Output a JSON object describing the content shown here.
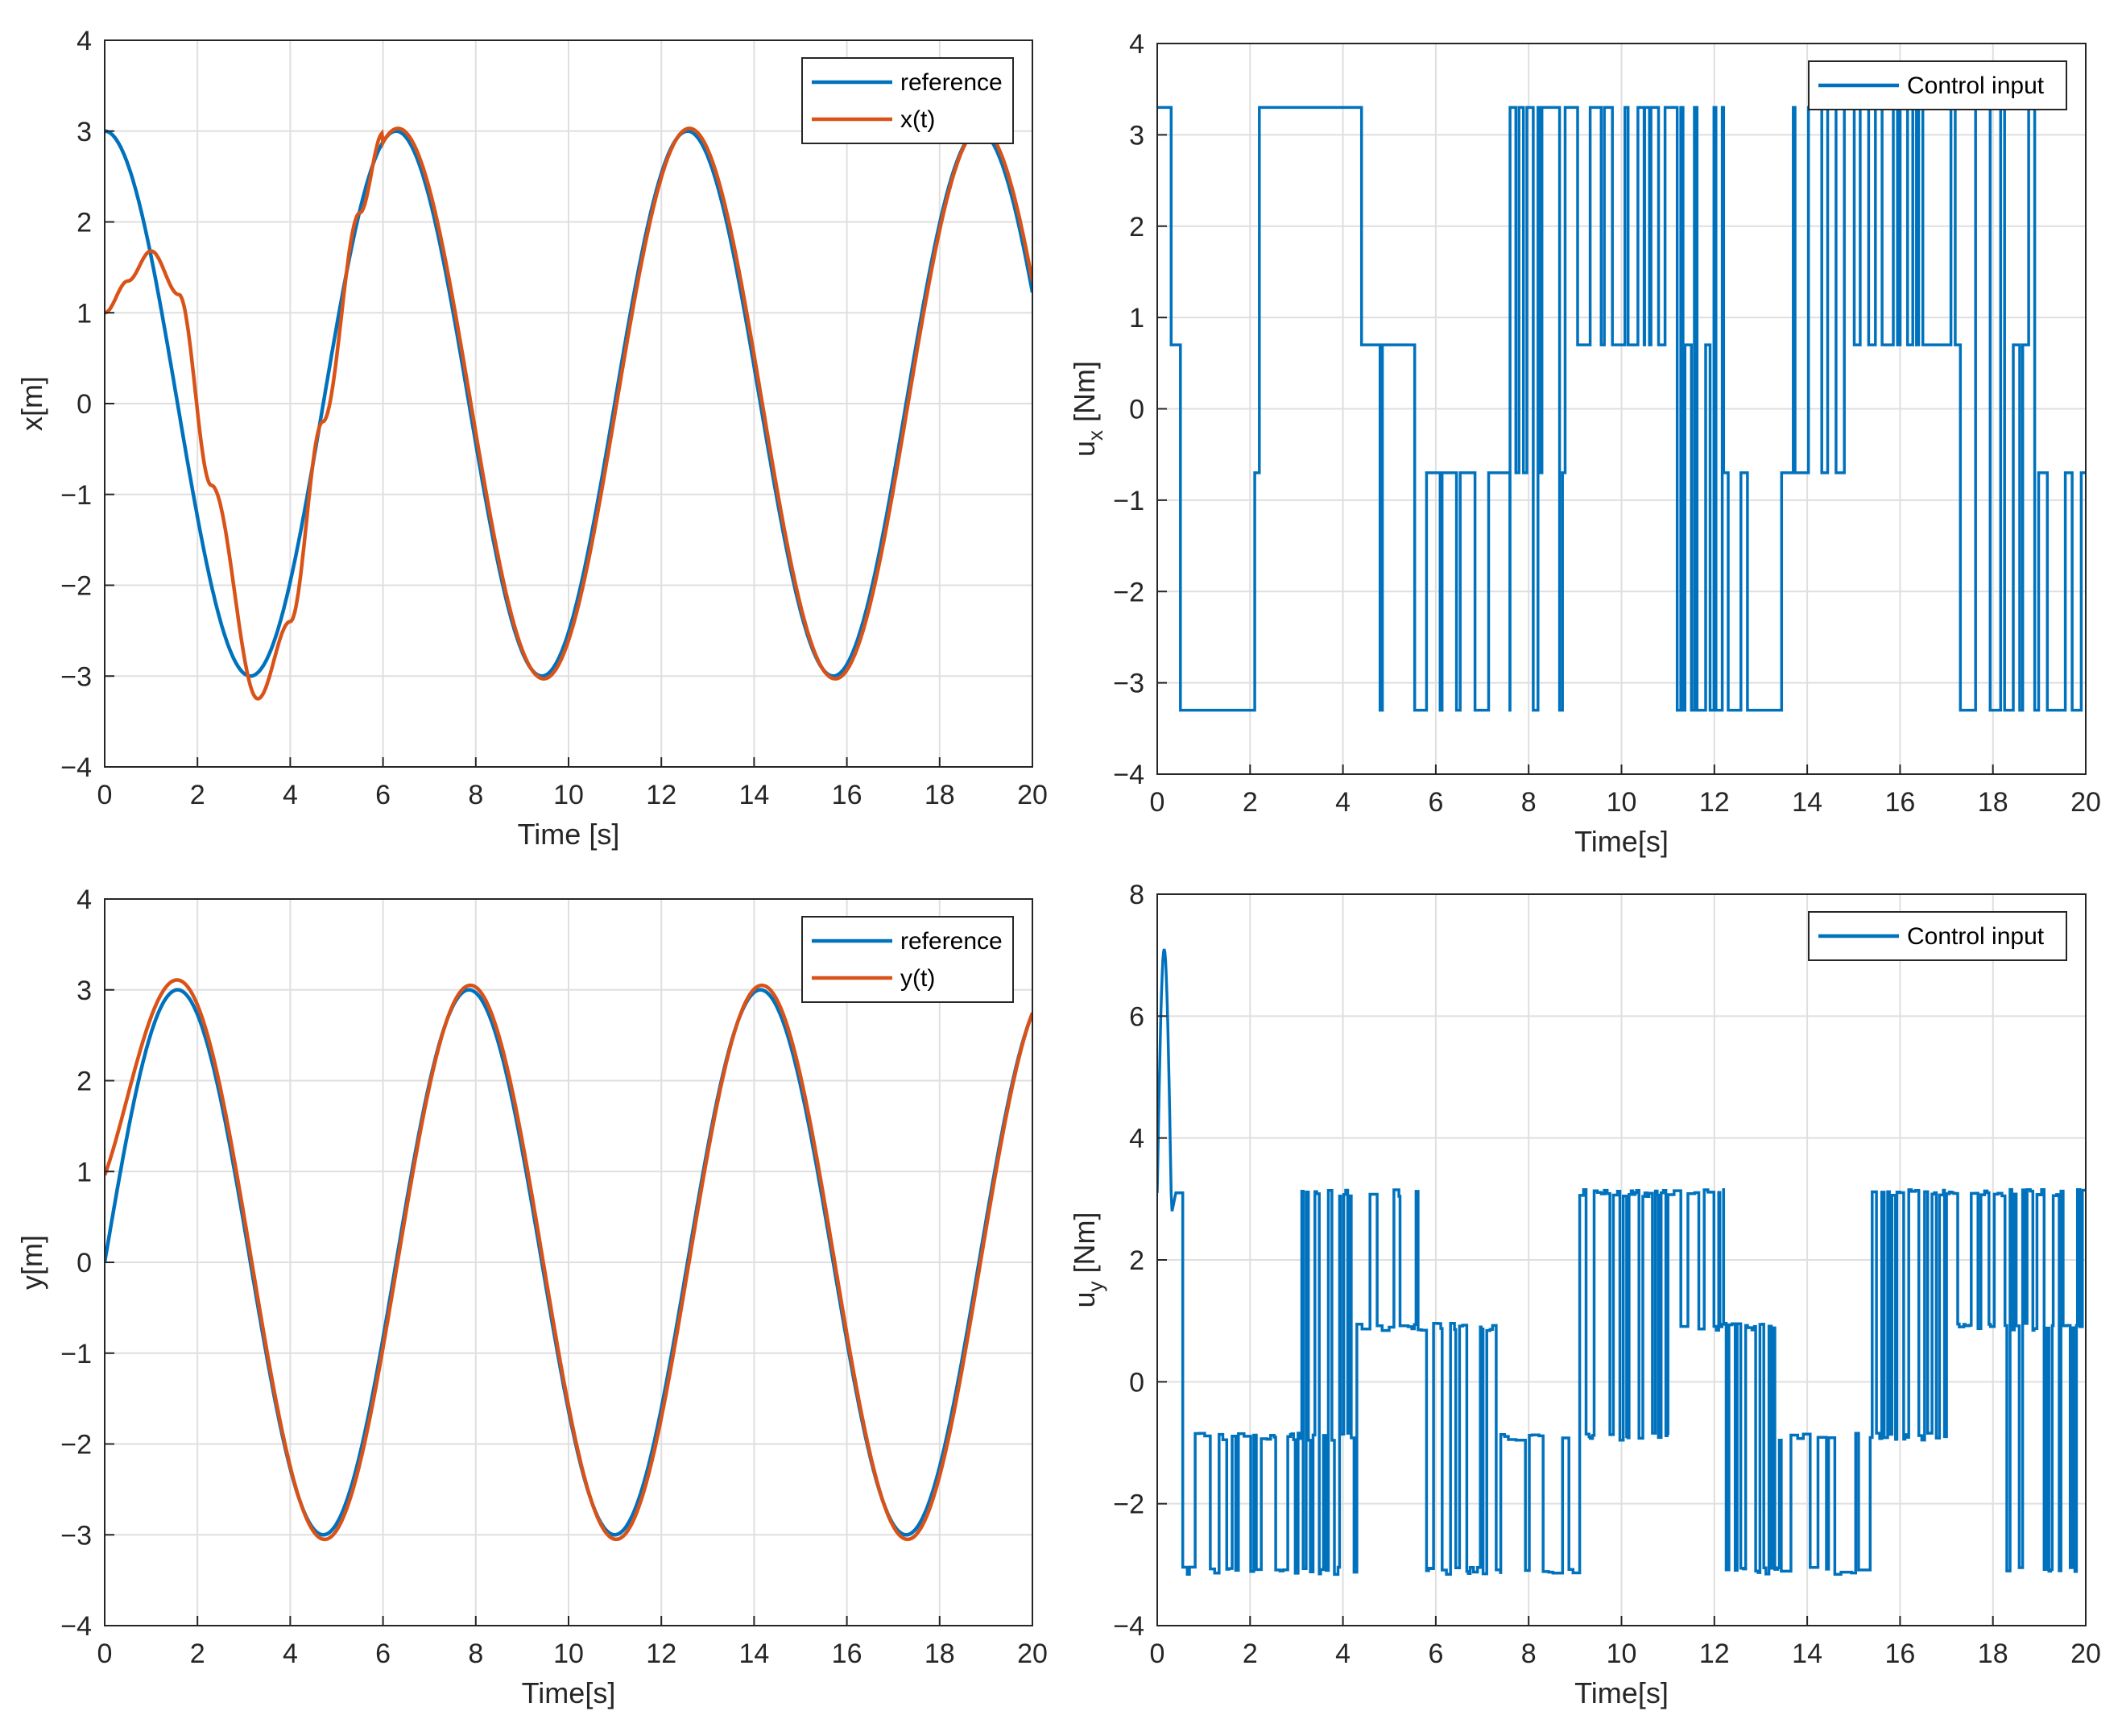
{
  "colors": {
    "reference": "#0072BD",
    "state": "#D95319",
    "control": "#0072BD"
  },
  "chart_data": [
    {
      "type": "line",
      "id": "x_tracking",
      "title": "",
      "xlabel": "Time [s]",
      "ylabel": "x[m]",
      "xlim": [
        0,
        20
      ],
      "ylim": [
        -4,
        4
      ],
      "xticks": [
        0,
        2,
        4,
        6,
        8,
        10,
        12,
        14,
        16,
        18,
        20
      ],
      "yticks": [
        -4,
        -3,
        -2,
        -1,
        0,
        1,
        2,
        3,
        4
      ],
      "grid": true,
      "legend_position": "top-right",
      "series": [
        {
          "name": "reference",
          "color": "#0072BD",
          "model": "3*cos(t)",
          "samples_t": [
            0,
            1,
            2,
            3.14,
            4.71,
            6.28,
            9.42,
            12.57,
            15.71,
            18.85,
            20
          ],
          "values": [
            3,
            1.62,
            -1.25,
            -3,
            0,
            3,
            -3,
            3,
            -3,
            3,
            1.22
          ]
        },
        {
          "name": "x(t)",
          "color": "#D95319",
          "model": "converges to reference by t≈6",
          "samples_t": [
            0,
            0.5,
            1.0,
            2.0,
            3.3,
            4.7,
            6.3,
            9.45,
            12.57,
            15.71,
            18.85,
            20
          ],
          "values": [
            1,
            1.35,
            1.68,
            0.0,
            -3.25,
            -0.2,
            3.02,
            -3.03,
            3,
            -3,
            3,
            1.25
          ]
        }
      ]
    },
    {
      "type": "line",
      "id": "ux_control",
      "title": "",
      "xlabel": "Time[s]",
      "ylabel": "u",
      "ylabel_subscript": "x",
      "ylabel_unit": " [Nm]",
      "xlim": [
        0,
        20
      ],
      "ylim": [
        -4,
        4
      ],
      "xticks": [
        0,
        2,
        4,
        6,
        8,
        10,
        12,
        14,
        16,
        18,
        20
      ],
      "yticks": [
        -4,
        -3,
        -2,
        -1,
        0,
        1,
        2,
        3,
        4
      ],
      "grid": true,
      "legend_position": "top-right",
      "levels": [
        3.3,
        0.7,
        -0.7,
        -3.3
      ],
      "series": [
        {
          "name": "Control input",
          "color": "#0072BD",
          "style": "switching"
        }
      ]
    },
    {
      "type": "line",
      "id": "y_tracking",
      "title": "",
      "xlabel": "Time[s]",
      "ylabel": "y[m]",
      "xlim": [
        0,
        20
      ],
      "ylim": [
        -4,
        4
      ],
      "xticks": [
        0,
        2,
        4,
        6,
        8,
        10,
        12,
        14,
        16,
        18,
        20
      ],
      "yticks": [
        -4,
        -3,
        -2,
        -1,
        0,
        1,
        2,
        3,
        4
      ],
      "grid": true,
      "legend_position": "top-right",
      "series": [
        {
          "name": "reference",
          "color": "#0072BD",
          "model": "3*sin(t)",
          "samples_t": [
            0,
            1.57,
            4.71,
            7.85,
            11.0,
            14.14,
            17.28,
            20
          ],
          "values": [
            0,
            3,
            -3,
            3,
            -3,
            3,
            -3,
            2.74
          ]
        },
        {
          "name": "y(t)",
          "color": "#D95319",
          "model": "starts at 1, overshoots slightly",
          "samples_t": [
            0,
            0.5,
            1.5,
            4.75,
            7.85,
            11.05,
            14.14,
            17.28,
            20
          ],
          "values": [
            1,
            1.8,
            3.08,
            -3.01,
            3.05,
            -3.05,
            3.05,
            -3,
            2.74
          ]
        }
      ]
    },
    {
      "type": "line",
      "id": "uy_control",
      "title": "",
      "xlabel": "Time[s]",
      "ylabel": "u",
      "ylabel_subscript": "y",
      "ylabel_unit": " [Nm]",
      "xlim": [
        0,
        20
      ],
      "ylim": [
        -4,
        8
      ],
      "xticks": [
        0,
        2,
        4,
        6,
        8,
        10,
        12,
        14,
        16,
        18,
        20
      ],
      "yticks": [
        -4,
        -2,
        0,
        2,
        4,
        6,
        8
      ],
      "grid": true,
      "legend_position": "top-right",
      "levels": [
        3.1,
        0.9,
        -0.9,
        -3.1
      ],
      "initial_peak": 7.1,
      "series": [
        {
          "name": "Control input",
          "color": "#0072BD",
          "style": "switching"
        }
      ]
    }
  ]
}
